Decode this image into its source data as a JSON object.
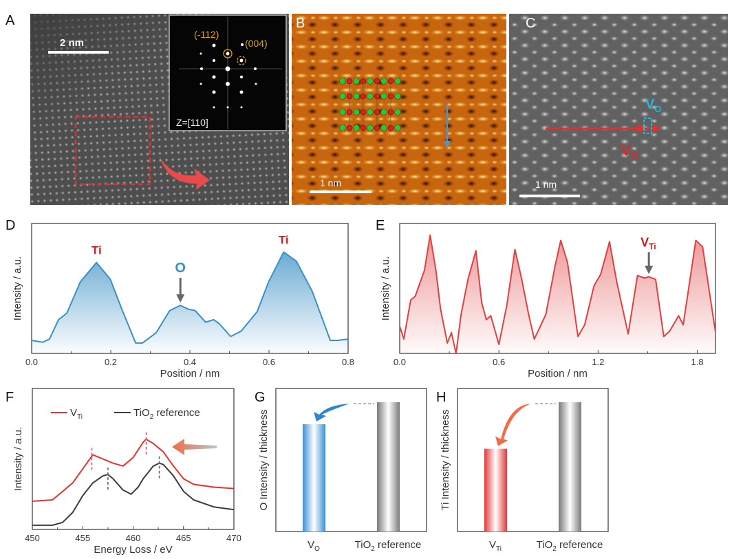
{
  "panel_labels": {
    "a": "A",
    "b": "B",
    "c": "C",
    "d": "D",
    "e": "E",
    "f": "F",
    "g": "G",
    "h": "H"
  },
  "panel_a": {
    "scale_bar": "2 nm",
    "fft_spots": [
      "(-112)",
      "(004)"
    ],
    "zone_axis": "Z=[110]",
    "colors": {
      "fft_annotation": "#e0a800",
      "roi_box": "#e03030"
    }
  },
  "panel_b": {
    "scale_bar": "1 nm",
    "atom_colors": {
      "Ti": "#2fc23a",
      "O": "#e01e1e"
    },
    "arrow_color": "#3f9ad6"
  },
  "panel_c": {
    "scale_bar": "1 nm",
    "vo": {
      "main": "V",
      "sub": "O"
    },
    "vti": {
      "main": "V",
      "sub": "Ti"
    },
    "colors": {
      "vo": "#2bb5d8",
      "vti": "#e02828"
    }
  },
  "chart_data": [
    {
      "panel": "D",
      "type": "area",
      "xlabel": "Position / nm",
      "ylabel": "Intensity / a.u.",
      "xlim": [
        0,
        0.8
      ],
      "ylim": [
        0,
        1
      ],
      "xticks": [
        "0.0",
        "0.2",
        "0.4",
        "0.6",
        "0.8"
      ],
      "color": "#3a8fc4",
      "series": [
        {
          "x": [
            0,
            0.028,
            0.045,
            0.068,
            0.089,
            0.123,
            0.164,
            0.199,
            0.228,
            0.263,
            0.28,
            0.315,
            0.349,
            0.376,
            0.396,
            0.413,
            0.44,
            0.46,
            0.474,
            0.503,
            0.529,
            0.57,
            0.599,
            0.637,
            0.669,
            0.709,
            0.755,
            0.773,
            0.8
          ],
          "y": [
            0.1,
            0.086,
            0.11,
            0.26,
            0.31,
            0.55,
            0.7,
            0.57,
            0.34,
            0.08,
            0.08,
            0.16,
            0.33,
            0.37,
            0.34,
            0.33,
            0.24,
            0.26,
            0.23,
            0.13,
            0.17,
            0.32,
            0.55,
            0.78,
            0.71,
            0.48,
            0.1,
            0.1,
            0.11
          ]
        }
      ],
      "annotations": [
        {
          "text": "Ti",
          "x": 0.164,
          "color": "#d42020",
          "arrow": false
        },
        {
          "text": "O",
          "x": 0.376,
          "color": "#3a8fc4",
          "arrow": true
        },
        {
          "text": "Ti",
          "x": 0.637,
          "color": "#d42020",
          "arrow": false
        }
      ]
    },
    {
      "panel": "E",
      "type": "area",
      "xlabel": "Position / nm",
      "ylabel": "Intensity / a.u.",
      "xlim": [
        0,
        1.91
      ],
      "ylim": [
        0,
        1
      ],
      "xticks": [
        "0.0",
        "0.6",
        "1.2",
        "1.8"
      ],
      "color": "#e04040",
      "series": [
        {
          "x": [
            0,
            0.025,
            0.066,
            0.094,
            0.15,
            0.184,
            0.219,
            0.247,
            0.288,
            0.313,
            0.341,
            0.371,
            0.413,
            0.461,
            0.496,
            0.524,
            0.551,
            0.6,
            0.648,
            0.697,
            0.738,
            0.78,
            0.814,
            0.884,
            0.939,
            0.974,
            1.015,
            1.078,
            1.119,
            1.175,
            1.216,
            1.269,
            1.313,
            1.382,
            1.438,
            1.48,
            1.507,
            1.548,
            1.597,
            1.632,
            1.687,
            1.715,
            1.791,
            1.832,
            1.909
          ],
          "y": [
            0.21,
            0.11,
            0.41,
            0.44,
            0.64,
            0.91,
            0.64,
            0.34,
            0.08,
            0.16,
            0.0,
            0.3,
            0.57,
            0.79,
            0.39,
            0.26,
            0.29,
            0.07,
            0.37,
            0.8,
            0.57,
            0.3,
            0.11,
            0.3,
            0.67,
            0.87,
            0.7,
            0.13,
            0.22,
            0.52,
            0.61,
            0.86,
            0.55,
            0.15,
            0.6,
            0.58,
            0.59,
            0.57,
            0.13,
            0.17,
            0.29,
            0.22,
            0.87,
            0.82,
            0.17
          ]
        }
      ],
      "annotations": [
        {
          "main": "V",
          "sub": "Ti",
          "x": 1.507,
          "color": "#c81e1e",
          "arrow": true
        }
      ]
    },
    {
      "panel": "F",
      "type": "line",
      "xlabel": "Energy Loss / eV",
      "ylabel": "Intensity / a.u.",
      "xlim": [
        450,
        470
      ],
      "ylim": [
        0,
        1
      ],
      "xticks": [
        "450",
        "455",
        "460",
        "465",
        "470"
      ],
      "legend_position": "top-left",
      "series": [
        {
          "name": {
            "main": "V",
            "sub": "Ti"
          },
          "color": "#e8302f",
          "x": [
            450,
            452,
            454,
            455,
            456,
            457,
            458,
            458.5,
            459,
            460,
            461,
            461.3,
            462,
            463,
            464,
            465,
            466,
            468,
            470
          ],
          "y": [
            0.2,
            0.21,
            0.33,
            0.43,
            0.53,
            0.5,
            0.47,
            0.46,
            0.45,
            0.51,
            0.62,
            0.64,
            0.61,
            0.55,
            0.45,
            0.36,
            0.32,
            0.3,
            0.29
          ],
          "peak_markers": [
            455.9,
            461.3
          ]
        },
        {
          "name": {
            "main": "TiO",
            "sub": "2",
            "rest": " reference"
          },
          "color": "#3c3c3c",
          "x": [
            450,
            452,
            453,
            454,
            455,
            456,
            457,
            457.5,
            458,
            459,
            459.8,
            460.5,
            461,
            462,
            462.6,
            463,
            464,
            465,
            466,
            468,
            470
          ],
          "y": [
            0.03,
            0.03,
            0.05,
            0.12,
            0.24,
            0.33,
            0.38,
            0.39,
            0.36,
            0.28,
            0.25,
            0.3,
            0.36,
            0.45,
            0.47,
            0.46,
            0.38,
            0.27,
            0.21,
            0.16,
            0.14
          ],
          "peak_markers": [
            457.5,
            462.6
          ]
        }
      ]
    },
    {
      "panel": "G",
      "type": "bar",
      "ylabel": "O Intensity / thickness",
      "categories": [
        {
          "main": "V",
          "sub": "O"
        },
        {
          "main": "TiO",
          "sub": "2",
          "rest": " reference"
        }
      ],
      "values": [
        0.83,
        1.0
      ],
      "colors": [
        "#3b8fd6",
        "#7a7a7a"
      ],
      "arrow_color": "#2f86d0"
    },
    {
      "panel": "H",
      "type": "bar",
      "ylabel": "Ti Intensity / thickness",
      "categories": [
        {
          "main": "V",
          "sub": "Ti"
        },
        {
          "main": "TiO",
          "sub": "2",
          "rest": " reference"
        }
      ],
      "values": [
        0.64,
        1.0
      ],
      "colors": [
        "#e0383a",
        "#7a7a7a"
      ],
      "arrow_color": "#f26b45"
    }
  ]
}
